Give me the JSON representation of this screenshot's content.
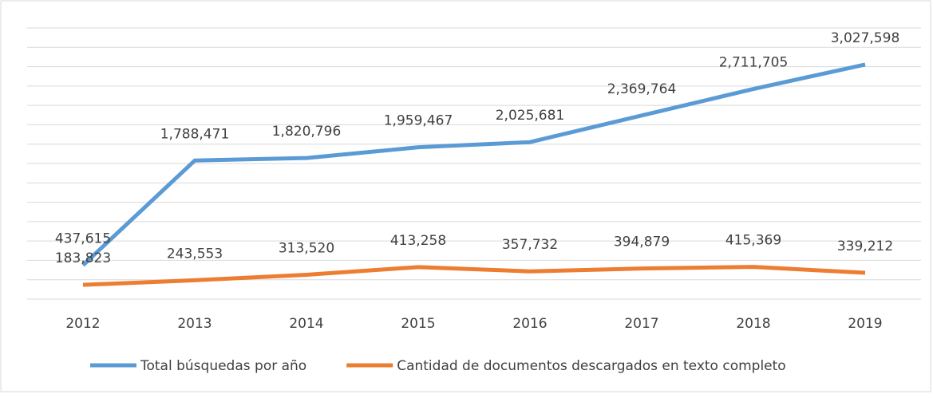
{
  "chart_data": {
    "type": "line",
    "categories": [
      "2012",
      "2013",
      "2014",
      "2015",
      "2016",
      "2017",
      "2018",
      "2019"
    ],
    "series": [
      {
        "name": "Total búsquedas por año",
        "color": "#5b9bd5",
        "values": [
          437615,
          1788471,
          1820796,
          1959467,
          2025681,
          2369764,
          2711705,
          3027598
        ],
        "value_labels": [
          "437,615",
          "1,788,471",
          "1,820,796",
          "1,959,467",
          "2,025,681",
          "2,369,764",
          "2,711,705",
          "3,027,598"
        ]
      },
      {
        "name": "Cantidad de documentos descargados en texto completo",
        "color": "#ed7d31",
        "values": [
          183823,
          243553,
          313520,
          413258,
          357732,
          394879,
          415369,
          339212
        ],
        "value_labels": [
          "183,823",
          "243,553",
          "313,520",
          "413,258",
          "357,732",
          "394,879",
          "415,369",
          "339,212"
        ]
      }
    ],
    "ylim": [
      0,
      3500000
    ],
    "yticks": [
      0,
      250000,
      500000,
      750000,
      1000000,
      1250000,
      1500000,
      1750000,
      2000000,
      2250000,
      2500000,
      2750000,
      3000000,
      3250000,
      3500000
    ],
    "grid": true,
    "legend": "bottom"
  }
}
